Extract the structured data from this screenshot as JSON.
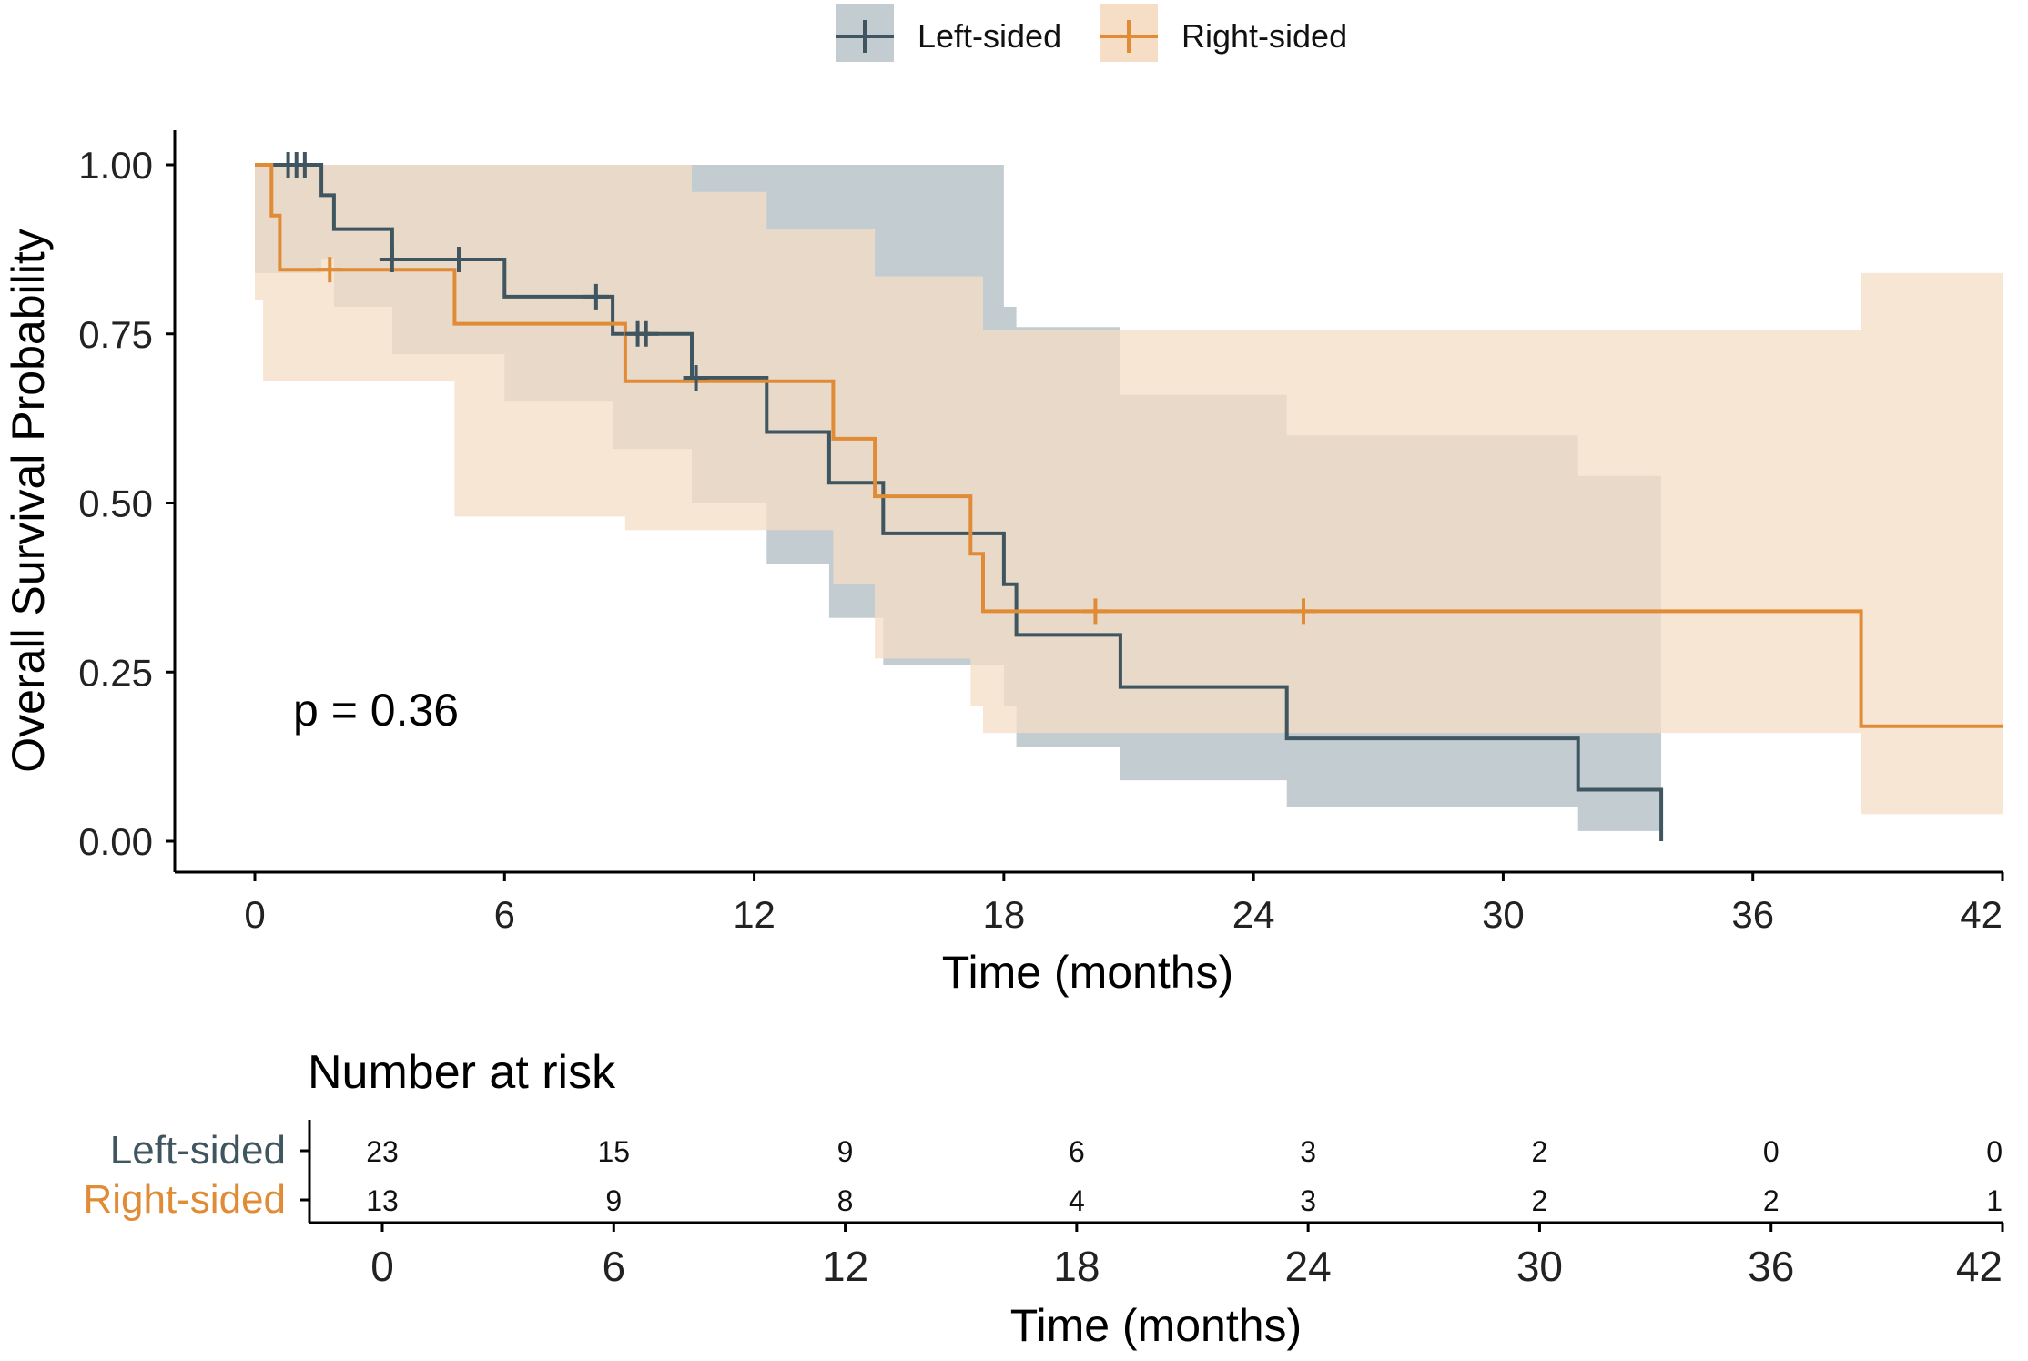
{
  "chart_data": {
    "type": "survival",
    "xlabel": "Time (months)",
    "ylabel": "Overall Survival Probability",
    "xlim": [
      0,
      42
    ],
    "ylim": [
      0,
      1
    ],
    "x_ticks": [
      0,
      6,
      12,
      18,
      24,
      30,
      36,
      42
    ],
    "y_ticks": [
      0,
      0.25,
      0.5,
      0.75,
      1.0
    ],
    "y_tick_labels": [
      "0.00",
      "0.25",
      "0.50",
      "0.75",
      "1.00"
    ],
    "annotation": "p = 0.36",
    "legend_position": "top-center",
    "series": [
      {
        "name": "Left-sided",
        "color": "#3f5560",
        "band_color": "#c3ccd1",
        "steps": [
          [
            0,
            1.0
          ],
          [
            1.6,
            0.955
          ],
          [
            1.9,
            0.905
          ],
          [
            3.3,
            0.86
          ],
          [
            6.0,
            0.805
          ],
          [
            8.6,
            0.75
          ],
          [
            10.5,
            0.685
          ],
          [
            12.3,
            0.605
          ],
          [
            13.8,
            0.53
          ],
          [
            15.1,
            0.455
          ],
          [
            18.0,
            0.38
          ],
          [
            18.3,
            0.305
          ],
          [
            20.8,
            0.228
          ],
          [
            24.8,
            0.152
          ],
          [
            31.8,
            0.076
          ],
          [
            33.8,
            0.0
          ]
        ],
        "end": 33.8,
        "upper": [
          [
            0,
            1.0
          ],
          [
            18.0,
            0.79
          ],
          [
            18.3,
            0.76
          ],
          [
            20.8,
            0.66
          ],
          [
            24.8,
            0.6
          ],
          [
            31.8,
            0.54
          ],
          [
            33.8,
            0.495
          ]
        ],
        "lower": [
          [
            0,
            0.84
          ],
          [
            1.6,
            0.86
          ],
          [
            1.9,
            0.79
          ],
          [
            3.3,
            0.72
          ],
          [
            6.0,
            0.65
          ],
          [
            8.6,
            0.58
          ],
          [
            10.5,
            0.5
          ],
          [
            12.3,
            0.41
          ],
          [
            13.8,
            0.33
          ],
          [
            15.1,
            0.26
          ],
          [
            18.0,
            0.2
          ],
          [
            18.3,
            0.14
          ],
          [
            20.8,
            0.09
          ],
          [
            24.8,
            0.05
          ],
          [
            31.8,
            0.015
          ],
          [
            33.8,
            0.0
          ]
        ],
        "censor_times": [
          0.8,
          1.0,
          1.2,
          3.3,
          4.9,
          8.2,
          9.2,
          9.4,
          10.6
        ],
        "at_risk": [
          23,
          15,
          9,
          6,
          3,
          2,
          0,
          0
        ]
      },
      {
        "name": "Right-sided",
        "color": "#e08b35",
        "band_color": "#f6ddc5",
        "steps": [
          [
            0,
            1.0
          ],
          [
            0.4,
            0.925
          ],
          [
            0.6,
            0.845
          ],
          [
            4.8,
            0.765
          ],
          [
            8.9,
            0.68
          ],
          [
            13.9,
            0.595
          ],
          [
            14.9,
            0.51
          ],
          [
            17.2,
            0.425
          ],
          [
            17.5,
            0.34
          ],
          [
            38.6,
            0.17
          ]
        ],
        "end": 42,
        "upper": [
          [
            0,
            1.0
          ],
          [
            9.0,
            1.0
          ],
          [
            10.5,
            0.96
          ],
          [
            12.3,
            0.905
          ],
          [
            14.9,
            0.835
          ],
          [
            17.5,
            0.755
          ],
          [
            38.6,
            0.84
          ]
        ],
        "lower": [
          [
            0,
            0.8
          ],
          [
            0.2,
            0.68
          ],
          [
            4.8,
            0.48
          ],
          [
            8.9,
            0.46
          ],
          [
            13.9,
            0.38
          ],
          [
            14.9,
            0.27
          ],
          [
            17.2,
            0.2
          ],
          [
            17.5,
            0.16
          ],
          [
            38.6,
            0.04
          ]
        ],
        "censor_times": [
          1.8,
          20.2,
          25.2
        ],
        "at_risk": [
          13,
          9,
          8,
          4,
          3,
          2,
          2,
          1
        ]
      }
    ],
    "risk_table": {
      "title": "Number at risk",
      "times": [
        0,
        6,
        12,
        18,
        24,
        30,
        36,
        42
      ],
      "xlabel": "Time (months)"
    }
  }
}
